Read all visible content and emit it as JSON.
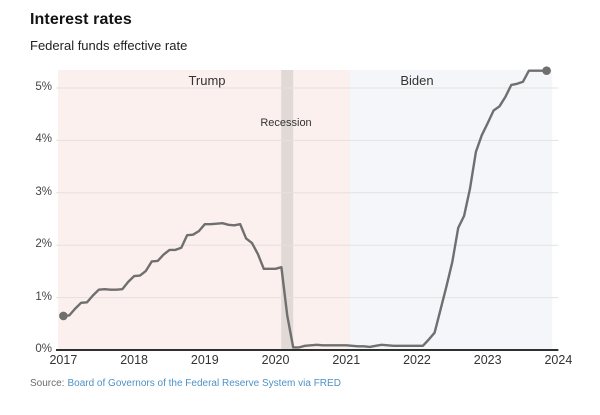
{
  "header": {
    "title": "Interest rates",
    "subtitle": "Federal funds effective rate"
  },
  "annotations": {
    "trump": "Trump",
    "biden": "Biden",
    "recession": "Recession"
  },
  "source": {
    "prefix": "Source:",
    "link_text": "Board of Governors of the Federal Reserve System via FRED"
  },
  "colors": {
    "trump_region": "#fbf0ed",
    "biden_region": "#f4f6fa",
    "recession_band": "#e0d9d6",
    "line": "#6f6f6f",
    "gridline": "#e4e1e0",
    "axis": "#2f2f2f",
    "source_link": "#4d92c6"
  },
  "chart_data": {
    "type": "line",
    "title": "Federal funds effective rate",
    "ylabel": "percent",
    "frequency": "monthly",
    "start_year": 2017,
    "start_month": 1,
    "end_year": 2023,
    "end_month": 11,
    "values": [
      0.65,
      0.66,
      0.79,
      0.9,
      0.91,
      1.04,
      1.15,
      1.16,
      1.15,
      1.15,
      1.16,
      1.3,
      1.41,
      1.42,
      1.51,
      1.69,
      1.7,
      1.82,
      1.91,
      1.91,
      1.95,
      2.19,
      2.2,
      2.27,
      2.4,
      2.4,
      2.41,
      2.42,
      2.39,
      2.38,
      2.4,
      2.13,
      2.04,
      1.83,
      1.55,
      1.55,
      1.55,
      1.58,
      0.65,
      0.05,
      0.05,
      0.08,
      0.09,
      0.1,
      0.09,
      0.09,
      0.09,
      0.09,
      0.09,
      0.08,
      0.07,
      0.07,
      0.06,
      0.08,
      0.1,
      0.09,
      0.08,
      0.08,
      0.08,
      0.08,
      0.08,
      0.08,
      0.2,
      0.33,
      0.77,
      1.21,
      1.68,
      2.33,
      2.56,
      3.08,
      3.78,
      4.1,
      4.33,
      4.57,
      4.65,
      4.83,
      5.06,
      5.08,
      5.12,
      5.33,
      5.33,
      5.33,
      5.33
    ],
    "ylim": [
      0,
      5.5
    ],
    "xlim": [
      2016.9,
      2024.0
    ],
    "y_ticks": [
      "0%",
      "1%",
      "2%",
      "3%",
      "4%",
      "5%"
    ],
    "x_ticks": [
      "2017",
      "2018",
      "2019",
      "2020",
      "2021",
      "2022",
      "2023",
      "2024"
    ],
    "grid": true,
    "endpoint_dots": true,
    "regions": [
      {
        "label": "Trump",
        "start": 2016.925,
        "end": 2021.053
      },
      {
        "label": "Biden",
        "start": 2021.053,
        "end": 2023.913
      }
    ],
    "recession_band": {
      "label": "Recession",
      "start": 2020.08,
      "end": 2020.25
    }
  }
}
